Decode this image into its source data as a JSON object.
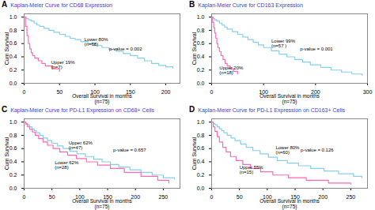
{
  "chart_data": [
    {
      "type": "step",
      "panel_label": "A",
      "title": "Kaplan-Meier Curve for CD68 Expression",
      "title_color": "#4040CC",
      "xlabel": "Overall Survival in months\n(n=75)",
      "ylabel": "Cum Survival",
      "xlim": [
        0,
        220
      ],
      "ylim": [
        0.0,
        1.05
      ],
      "xticks": [
        0,
        50,
        100,
        150,
        200
      ],
      "yticks": [
        {
          "value": 0.0,
          "label": "0.0"
        },
        {
          "value": 0.2,
          "label": "0.2"
        },
        {
          "value": 0.4,
          "label": "0.4"
        },
        {
          "value": 0.6,
          "label": "0.6"
        },
        {
          "value": 0.8,
          "label": "0.8"
        },
        {
          "value": 1.0,
          "label": "1.0"
        }
      ],
      "grid": false,
      "series": [
        {
          "name": "Lower 80%\n(n=68)",
          "color": "#87CEEB",
          "line_style": "solid",
          "x": [
            0,
            3,
            6,
            10,
            14,
            18,
            22,
            28,
            35,
            42,
            50,
            58,
            65,
            72,
            80,
            90,
            100,
            110,
            120,
            130,
            140,
            150,
            160,
            170,
            180,
            190,
            200,
            210
          ],
          "values": [
            1.0,
            0.98,
            0.96,
            0.94,
            0.91,
            0.88,
            0.86,
            0.83,
            0.8,
            0.77,
            0.74,
            0.71,
            0.68,
            0.66,
            0.63,
            0.6,
            0.57,
            0.54,
            0.51,
            0.48,
            0.45,
            0.42,
            0.38,
            0.34,
            0.3,
            0.27,
            0.25,
            0.23
          ],
          "annotation": {
            "x": 85,
            "y": 0.62
          }
        },
        {
          "name": "Upper 19%\n(n=7)",
          "color": "#FF69B4",
          "line_style": "solid",
          "x": [
            0,
            2,
            4,
            6,
            8,
            10,
            12,
            15,
            20,
            25,
            30,
            40,
            50
          ],
          "values": [
            1.0,
            0.86,
            0.72,
            0.6,
            0.52,
            0.46,
            0.42,
            0.38,
            0.34,
            0.3,
            0.26,
            0.22,
            0.18
          ],
          "annotation": {
            "x": 38,
            "y": 0.28
          }
        }
      ],
      "annotations": [
        {
          "text": "p-value = 0.002",
          "x": 120,
          "y": 0.5
        }
      ]
    },
    {
      "type": "step",
      "panel_label": "B",
      "title": "Kaplan-Meier Curve for CD163 Expression",
      "title_color": "#4040CC",
      "xlabel": "Overall Survival in months\n(n=75)",
      "ylabel": "Cum Survival",
      "xlim": [
        0,
        300
      ],
      "ylim": [
        0.0,
        1.05
      ],
      "xticks": [
        0,
        100,
        200,
        300
      ],
      "yticks": [
        {
          "value": 0.0,
          "label": "0.0"
        },
        {
          "value": 0.2,
          "label": "0.2"
        },
        {
          "value": 0.4,
          "label": "0.4"
        },
        {
          "value": 0.6,
          "label": "0.6"
        },
        {
          "value": 0.8,
          "label": "0.8"
        },
        {
          "value": 1.0,
          "label": "1.0"
        }
      ],
      "grid": false,
      "series": [
        {
          "name": "Lower 99%\n(n=57 )",
          "color": "#87CEEB",
          "line_style": "solid",
          "x": [
            0,
            3,
            6,
            10,
            15,
            20,
            25,
            30,
            40,
            50,
            60,
            70,
            80,
            90,
            100,
            115,
            130,
            145,
            160,
            175,
            190,
            210,
            230,
            250,
            270,
            290
          ],
          "values": [
            1.0,
            0.98,
            0.96,
            0.94,
            0.91,
            0.88,
            0.85,
            0.82,
            0.78,
            0.74,
            0.7,
            0.66,
            0.62,
            0.58,
            0.54,
            0.49,
            0.44,
            0.4,
            0.36,
            0.32,
            0.28,
            0.24,
            0.2,
            0.17,
            0.14,
            0.12
          ],
          "annotation": {
            "x": 115,
            "y": 0.6
          }
        },
        {
          "name": "Upper 20%\n(n=18)",
          "color": "#FF69B4",
          "line_style": "solid",
          "x": [
            0,
            2,
            4,
            6,
            8,
            10,
            12,
            15,
            18,
            22,
            26,
            30,
            36,
            42,
            50
          ],
          "values": [
            1.0,
            0.92,
            0.84,
            0.76,
            0.68,
            0.6,
            0.54,
            0.48,
            0.42,
            0.36,
            0.3,
            0.26,
            0.22,
            0.18,
            0.14
          ],
          "annotation": {
            "x": 15,
            "y": 0.2
          }
        }
      ],
      "annotations": [
        {
          "text": "p-value = 0.001",
          "x": 170,
          "y": 0.5
        }
      ]
    },
    {
      "type": "step",
      "panel_label": "C",
      "title": "Kaplan-Meier Curve for PD-L1 Expression on CD68+ Cells",
      "title_color": "#4040CC",
      "xlabel": "Overall Survival in months\n(n=75)",
      "ylabel": "Cum Survival",
      "xlim": [
        0,
        280
      ],
      "ylim": [
        0.0,
        1.05
      ],
      "xticks": [
        0,
        50,
        100,
        150,
        200,
        250
      ],
      "yticks": [
        {
          "value": 0.0,
          "label": "0.0"
        },
        {
          "value": 0.2,
          "label": "0.2"
        },
        {
          "value": 0.4,
          "label": "0.4"
        },
        {
          "value": 0.6,
          "label": "0.6"
        },
        {
          "value": 0.8,
          "label": "0.8"
        },
        {
          "value": 1.0,
          "label": "1.0"
        }
      ],
      "grid": false,
      "series": [
        {
          "name": "Upper 62%\n(n=47)",
          "color": "#87CEEB",
          "line_style": "solid",
          "x": [
            0,
            3,
            6,
            10,
            14,
            18,
            22,
            28,
            34,
            42,
            50,
            60,
            70,
            82,
            95,
            110,
            125,
            140,
            155,
            170,
            190,
            210,
            230,
            250,
            270
          ],
          "values": [
            1.0,
            0.98,
            0.96,
            0.93,
            0.9,
            0.87,
            0.84,
            0.8,
            0.76,
            0.72,
            0.68,
            0.64,
            0.6,
            0.56,
            0.52,
            0.48,
            0.44,
            0.4,
            0.36,
            0.32,
            0.28,
            0.24,
            0.2,
            0.16,
            0.14
          ],
          "annotation": {
            "x": 80,
            "y": 0.65
          }
        },
        {
          "name": "Lower 62%\n(n=28)",
          "color": "#FF69B4",
          "line_style": "solid",
          "x": [
            0,
            3,
            6,
            10,
            15,
            20,
            26,
            34,
            42,
            52,
            64,
            78,
            94,
            112,
            132,
            155,
            180,
            210,
            240,
            260
          ],
          "values": [
            1.0,
            0.97,
            0.93,
            0.89,
            0.85,
            0.8,
            0.75,
            0.7,
            0.65,
            0.6,
            0.55,
            0.5,
            0.45,
            0.4,
            0.35,
            0.3,
            0.24,
            0.18,
            0.12,
            0.08
          ],
          "annotation": {
            "x": 55,
            "y": 0.35
          }
        }
      ],
      "annotations": [
        {
          "text": "p-value = 0.657",
          "x": 160,
          "y": 0.55
        }
      ]
    },
    {
      "type": "step",
      "panel_label": "D",
      "title": "Kaplan-Meier Curve for PD-L1 Expression on CD163+ Cells",
      "title_color": "#4040CC",
      "xlabel": "Overall Survival in months\n(n=75)",
      "ylabel": "Cum Survival",
      "xlim": [
        0,
        280
      ],
      "ylim": [
        0.0,
        1.05
      ],
      "xticks": [
        0,
        50,
        100,
        150,
        200,
        250
      ],
      "yticks": [
        {
          "value": 0.0,
          "label": "0.0"
        },
        {
          "value": 0.2,
          "label": "0.2"
        },
        {
          "value": 0.4,
          "label": "0.4"
        },
        {
          "value": 0.6,
          "label": "0.6"
        },
        {
          "value": 0.8,
          "label": "0.8"
        },
        {
          "value": 1.0,
          "label": "1.0"
        }
      ],
      "grid": false,
      "series": [
        {
          "name": "Lower 80%\n(n=60)",
          "color": "#87CEEB",
          "line_style": "solid",
          "x": [
            0,
            3,
            6,
            10,
            14,
            18,
            22,
            28,
            35,
            42,
            52,
            62,
            74,
            87,
            102,
            118,
            136,
            156,
            178,
            202,
            228,
            255,
            270
          ],
          "values": [
            1.0,
            0.98,
            0.96,
            0.93,
            0.9,
            0.87,
            0.84,
            0.8,
            0.76,
            0.72,
            0.67,
            0.62,
            0.57,
            0.52,
            0.47,
            0.42,
            0.38,
            0.34,
            0.3,
            0.26,
            0.22,
            0.18,
            0.16
          ],
          "annotation": {
            "x": 115,
            "y": 0.58
          }
        },
        {
          "name": "Upper 55%\n(n=15)",
          "color": "#FF69B4",
          "line_style": "solid",
          "x": [
            0,
            3,
            6,
            10,
            14,
            20,
            26,
            34,
            44,
            56,
            70,
            88,
            110,
            138,
            170,
            210,
            250
          ],
          "values": [
            1.0,
            0.93,
            0.86,
            0.78,
            0.7,
            0.62,
            0.55,
            0.48,
            0.42,
            0.36,
            0.3,
            0.25,
            0.2,
            0.16,
            0.12,
            0.08,
            0.06
          ],
          "annotation": {
            "x": 50,
            "y": 0.28
          }
        }
      ],
      "annotations": [
        {
          "text": "p-value = 0.126",
          "x": 160,
          "y": 0.55
        }
      ]
    }
  ]
}
